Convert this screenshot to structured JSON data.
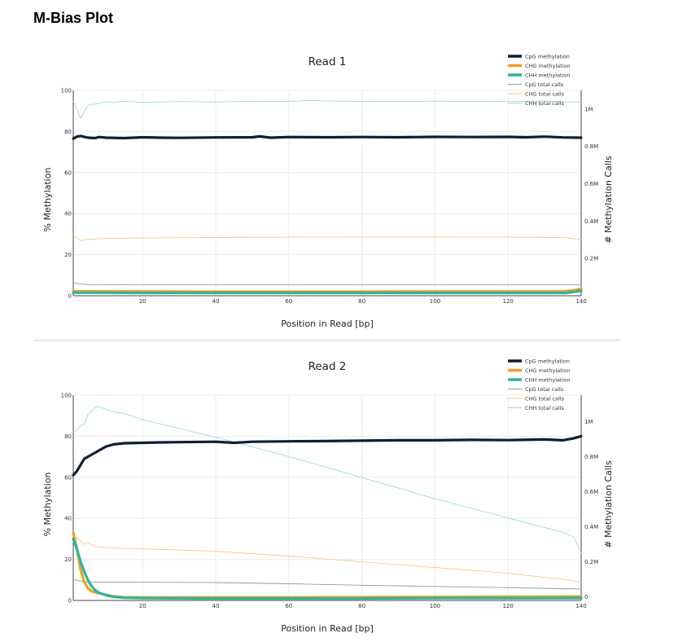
{
  "page": {
    "title": "M-Bias Plot"
  },
  "chart_data": [
    {
      "type": "line",
      "title": "Read 1",
      "xlabel": "Position in Read [bp]",
      "ylabel": "% Methylation",
      "y2label": "# Methylation Calls",
      "xlim": [
        1,
        140
      ],
      "ylim": [
        0,
        100
      ],
      "y2lim": [
        0,
        1100000
      ],
      "x_ticks": [
        "20",
        "40",
        "60",
        "80",
        "100",
        "120",
        "140"
      ],
      "y_ticks": [
        "0",
        "20",
        "40",
        "60",
        "80",
        "100"
      ],
      "y2_ticks": [
        "0.2M",
        "0.4M",
        "0.6M",
        "0.8M",
        "1M"
      ],
      "legend_position": "top-right",
      "series": [
        {
          "name": "CpG methylation",
          "axis": "left",
          "color": "#0f1f33",
          "width": 3.2,
          "points": [
            [
              1,
              76.5
            ],
            [
              2,
              77.5
            ],
            [
              3,
              77.8
            ],
            [
              5,
              77
            ],
            [
              7,
              76.8
            ],
            [
              8,
              77.3
            ],
            [
              10,
              77
            ],
            [
              15,
              76.8
            ],
            [
              20,
              77.2
            ],
            [
              25,
              77
            ],
            [
              30,
              76.9
            ],
            [
              40,
              77.1
            ],
            [
              50,
              77.2
            ],
            [
              52,
              77.6
            ],
            [
              55,
              77
            ],
            [
              60,
              77.3
            ],
            [
              70,
              77.2
            ],
            [
              80,
              77.3
            ],
            [
              90,
              77.2
            ],
            [
              100,
              77.4
            ],
            [
              110,
              77.3
            ],
            [
              120,
              77.4
            ],
            [
              125,
              77.2
            ],
            [
              130,
              77.5
            ],
            [
              135,
              77.1
            ],
            [
              140,
              77
            ]
          ]
        },
        {
          "name": "CHG methylation",
          "axis": "left",
          "color": "#f0a022",
          "width": 3.2,
          "points": [
            [
              1,
              2.2
            ],
            [
              20,
              2.1
            ],
            [
              40,
              2.0
            ],
            [
              60,
              2.0
            ],
            [
              80,
              2.0
            ],
            [
              100,
              2.1
            ],
            [
              120,
              2.1
            ],
            [
              135,
              2.1
            ],
            [
              138,
              2.6
            ],
            [
              140,
              3.4
            ]
          ]
        },
        {
          "name": "CHH methylation",
          "axis": "left",
          "color": "#2db59b",
          "width": 3.2,
          "points": [
            [
              1,
              1.5
            ],
            [
              20,
              1.4
            ],
            [
              40,
              1.4
            ],
            [
              60,
              1.4
            ],
            [
              80,
              1.4
            ],
            [
              100,
              1.4
            ],
            [
              120,
              1.4
            ],
            [
              136,
              1.4
            ],
            [
              138,
              1.9
            ],
            [
              140,
              2.4
            ]
          ]
        },
        {
          "name": "CpG total calls",
          "axis": "right",
          "color": "#9a9a9a",
          "width": 0.9,
          "points": [
            [
              1,
              68000
            ],
            [
              5,
              60000
            ],
            [
              20,
              58000
            ],
            [
              60,
              58000
            ],
            [
              100,
              58000
            ],
            [
              140,
              58000
            ]
          ]
        },
        {
          "name": "CHG total calls",
          "axis": "right",
          "color": "#f5c98a",
          "width": 0.9,
          "points": [
            [
              1,
              325000
            ],
            [
              3,
              295000
            ],
            [
              5,
              302000
            ],
            [
              10,
              307000
            ],
            [
              20,
              310000
            ],
            [
              40,
              312000
            ],
            [
              60,
              314000
            ],
            [
              80,
              315000
            ],
            [
              100,
              315000
            ],
            [
              120,
              314000
            ],
            [
              135,
              312000
            ],
            [
              140,
              302000
            ]
          ]
        },
        {
          "name": "CHH total calls",
          "axis": "right",
          "color": "#9edcca",
          "width": 0.9,
          "points": [
            [
              1,
              1040000
            ],
            [
              2,
              1000000
            ],
            [
              3,
              950000
            ],
            [
              5,
              1020000
            ],
            [
              8,
              1030000
            ],
            [
              10,
              1040000
            ],
            [
              12,
              1035000
            ],
            [
              15,
              1042000
            ],
            [
              20,
              1036000
            ],
            [
              30,
              1040000
            ],
            [
              40,
              1038000
            ],
            [
              50,
              1042000
            ],
            [
              60,
              1040000
            ],
            [
              65,
              1046000
            ],
            [
              80,
              1040000
            ],
            [
              100,
              1042000
            ],
            [
              120,
              1040000
            ],
            [
              130,
              1043000
            ],
            [
              140,
              1036000
            ]
          ]
        }
      ]
    },
    {
      "type": "line",
      "title": "Read 2",
      "xlabel": "Position in Read [bp]",
      "ylabel": "% Methylation",
      "y2label": "# Methylation Calls",
      "xlim": [
        1,
        140
      ],
      "ylim": [
        0,
        100
      ],
      "y2lim": [
        -20000,
        1150000
      ],
      "x_ticks": [
        "20",
        "40",
        "60",
        "80",
        "100",
        "120",
        "140"
      ],
      "y_ticks": [
        "0",
        "20",
        "40",
        "60",
        "80",
        "100"
      ],
      "y2_ticks": [
        "0",
        "0.2M",
        "0.4M",
        "0.6M",
        "0.8M",
        "1M"
      ],
      "legend_position": "top-right",
      "series": [
        {
          "name": "CpG methylation",
          "axis": "left",
          "color": "#0f1f33",
          "width": 3.2,
          "points": [
            [
              1,
              61
            ],
            [
              2,
              63
            ],
            [
              3,
              66
            ],
            [
              4,
              69
            ],
            [
              5,
              70
            ],
            [
              6,
              71
            ],
            [
              7,
              72
            ],
            [
              8,
              73
            ],
            [
              9,
              74
            ],
            [
              10,
              75
            ],
            [
              12,
              76
            ],
            [
              15,
              76.6
            ],
            [
              20,
              76.8
            ],
            [
              25,
              77
            ],
            [
              30,
              77.1
            ],
            [
              40,
              77.3
            ],
            [
              45,
              76.8
            ],
            [
              50,
              77.3
            ],
            [
              60,
              77.5
            ],
            [
              70,
              77.6
            ],
            [
              80,
              77.8
            ],
            [
              90,
              78
            ],
            [
              100,
              78
            ],
            [
              110,
              78.2
            ],
            [
              120,
              78.1
            ],
            [
              130,
              78.4
            ],
            [
              135,
              78
            ],
            [
              138,
              79
            ],
            [
              140,
              80
            ]
          ]
        },
        {
          "name": "CHG methylation",
          "axis": "left",
          "color": "#f0a022",
          "width": 3.2,
          "points": [
            [
              1,
              33
            ],
            [
              2,
              25
            ],
            [
              3,
              15
            ],
            [
              4,
              9
            ],
            [
              5,
              6
            ],
            [
              6,
              4.5
            ],
            [
              8,
              3.5
            ],
            [
              10,
              2.7
            ],
            [
              12,
              2
            ],
            [
              15,
              1.6
            ],
            [
              20,
              1.5
            ],
            [
              40,
              1.5
            ],
            [
              60,
              1.5
            ],
            [
              80,
              1.6
            ],
            [
              100,
              1.7
            ],
            [
              120,
              1.8
            ],
            [
              140,
              1.9
            ]
          ]
        },
        {
          "name": "CHH methylation",
          "axis": "left",
          "color": "#2db59b",
          "width": 3.2,
          "points": [
            [
              1,
              30
            ],
            [
              2,
              25
            ],
            [
              3,
              19
            ],
            [
              4,
              14
            ],
            [
              5,
              10
            ],
            [
              6,
              7
            ],
            [
              7,
              5
            ],
            [
              8,
              3.8
            ],
            [
              10,
              2.5
            ],
            [
              12,
              1.8
            ],
            [
              15,
              1.3
            ],
            [
              20,
              1.1
            ],
            [
              40,
              1.0
            ],
            [
              60,
              1.0
            ],
            [
              80,
              1.0
            ],
            [
              100,
              1.1
            ],
            [
              120,
              1.1
            ],
            [
              140,
              1.2
            ]
          ]
        },
        {
          "name": "CpG total calls",
          "axis": "right",
          "color": "#9a9a9a",
          "width": 0.9,
          "points": [
            [
              1,
              100000
            ],
            [
              3,
              90000
            ],
            [
              5,
              85000
            ],
            [
              20,
              84000
            ],
            [
              40,
              82000
            ],
            [
              60,
              75000
            ],
            [
              80,
              67000
            ],
            [
              100,
              60000
            ],
            [
              120,
              53000
            ],
            [
              140,
              45000
            ]
          ]
        },
        {
          "name": "CHG total calls",
          "axis": "right",
          "color": "#f5c98a",
          "width": 0.9,
          "points": [
            [
              1,
              310000
            ],
            [
              2,
              340000
            ],
            [
              3,
              320000
            ],
            [
              4,
              300000
            ],
            [
              5,
              310000
            ],
            [
              6,
              298000
            ],
            [
              8,
              285000
            ],
            [
              10,
              280000
            ],
            [
              20,
              275000
            ],
            [
              40,
              260000
            ],
            [
              60,
              233000
            ],
            [
              80,
              200000
            ],
            [
              100,
              168000
            ],
            [
              120,
              135000
            ],
            [
              135,
              100000
            ],
            [
              140,
              85000
            ]
          ]
        },
        {
          "name": "CHH total calls",
          "axis": "right",
          "color": "#9edcca",
          "width": 0.9,
          "points": [
            [
              1,
              940000
            ],
            [
              2,
              950000
            ],
            [
              3,
              975000
            ],
            [
              4,
              985000
            ],
            [
              5,
              1040000
            ],
            [
              6,
              1060000
            ],
            [
              7,
              1080000
            ],
            [
              8,
              1085000
            ],
            [
              10,
              1070000
            ],
            [
              12,
              1055000
            ],
            [
              15,
              1045000
            ],
            [
              20,
              1010000
            ],
            [
              30,
              960000
            ],
            [
              40,
              910000
            ],
            [
              60,
              800000
            ],
            [
              80,
              680000
            ],
            [
              100,
              560000
            ],
            [
              120,
              450000
            ],
            [
              130,
              395000
            ],
            [
              135,
              370000
            ],
            [
              138,
              340000
            ],
            [
              140,
              250000
            ]
          ]
        }
      ]
    }
  ]
}
